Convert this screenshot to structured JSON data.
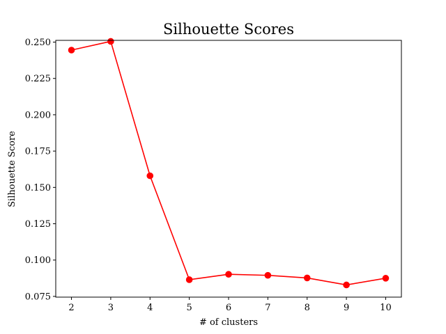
{
  "chart_data": {
    "type": "line",
    "title": "Silhouette Scores",
    "xlabel": "# of clusters",
    "ylabel": "Silhouette Score",
    "x": [
      2,
      3,
      4,
      5,
      6,
      7,
      8,
      9,
      10
    ],
    "series": [
      {
        "values": [
          0.2445,
          0.2505,
          0.158,
          0.0865,
          0.0902,
          0.0895,
          0.0877,
          0.0829,
          0.0875
        ],
        "color": "#ff0000",
        "marker": "circle"
      }
    ],
    "xlim": [
      1.6,
      10.4
    ],
    "ylim": [
      0.0745,
      0.2512
    ],
    "xticks": [
      "2",
      "3",
      "4",
      "5",
      "6",
      "7",
      "8",
      "9",
      "10"
    ],
    "yticks": [
      "0.075",
      "0.100",
      "0.125",
      "0.150",
      "0.175",
      "0.200",
      "0.225",
      "0.250"
    ],
    "grid": false,
    "legend": false
  }
}
